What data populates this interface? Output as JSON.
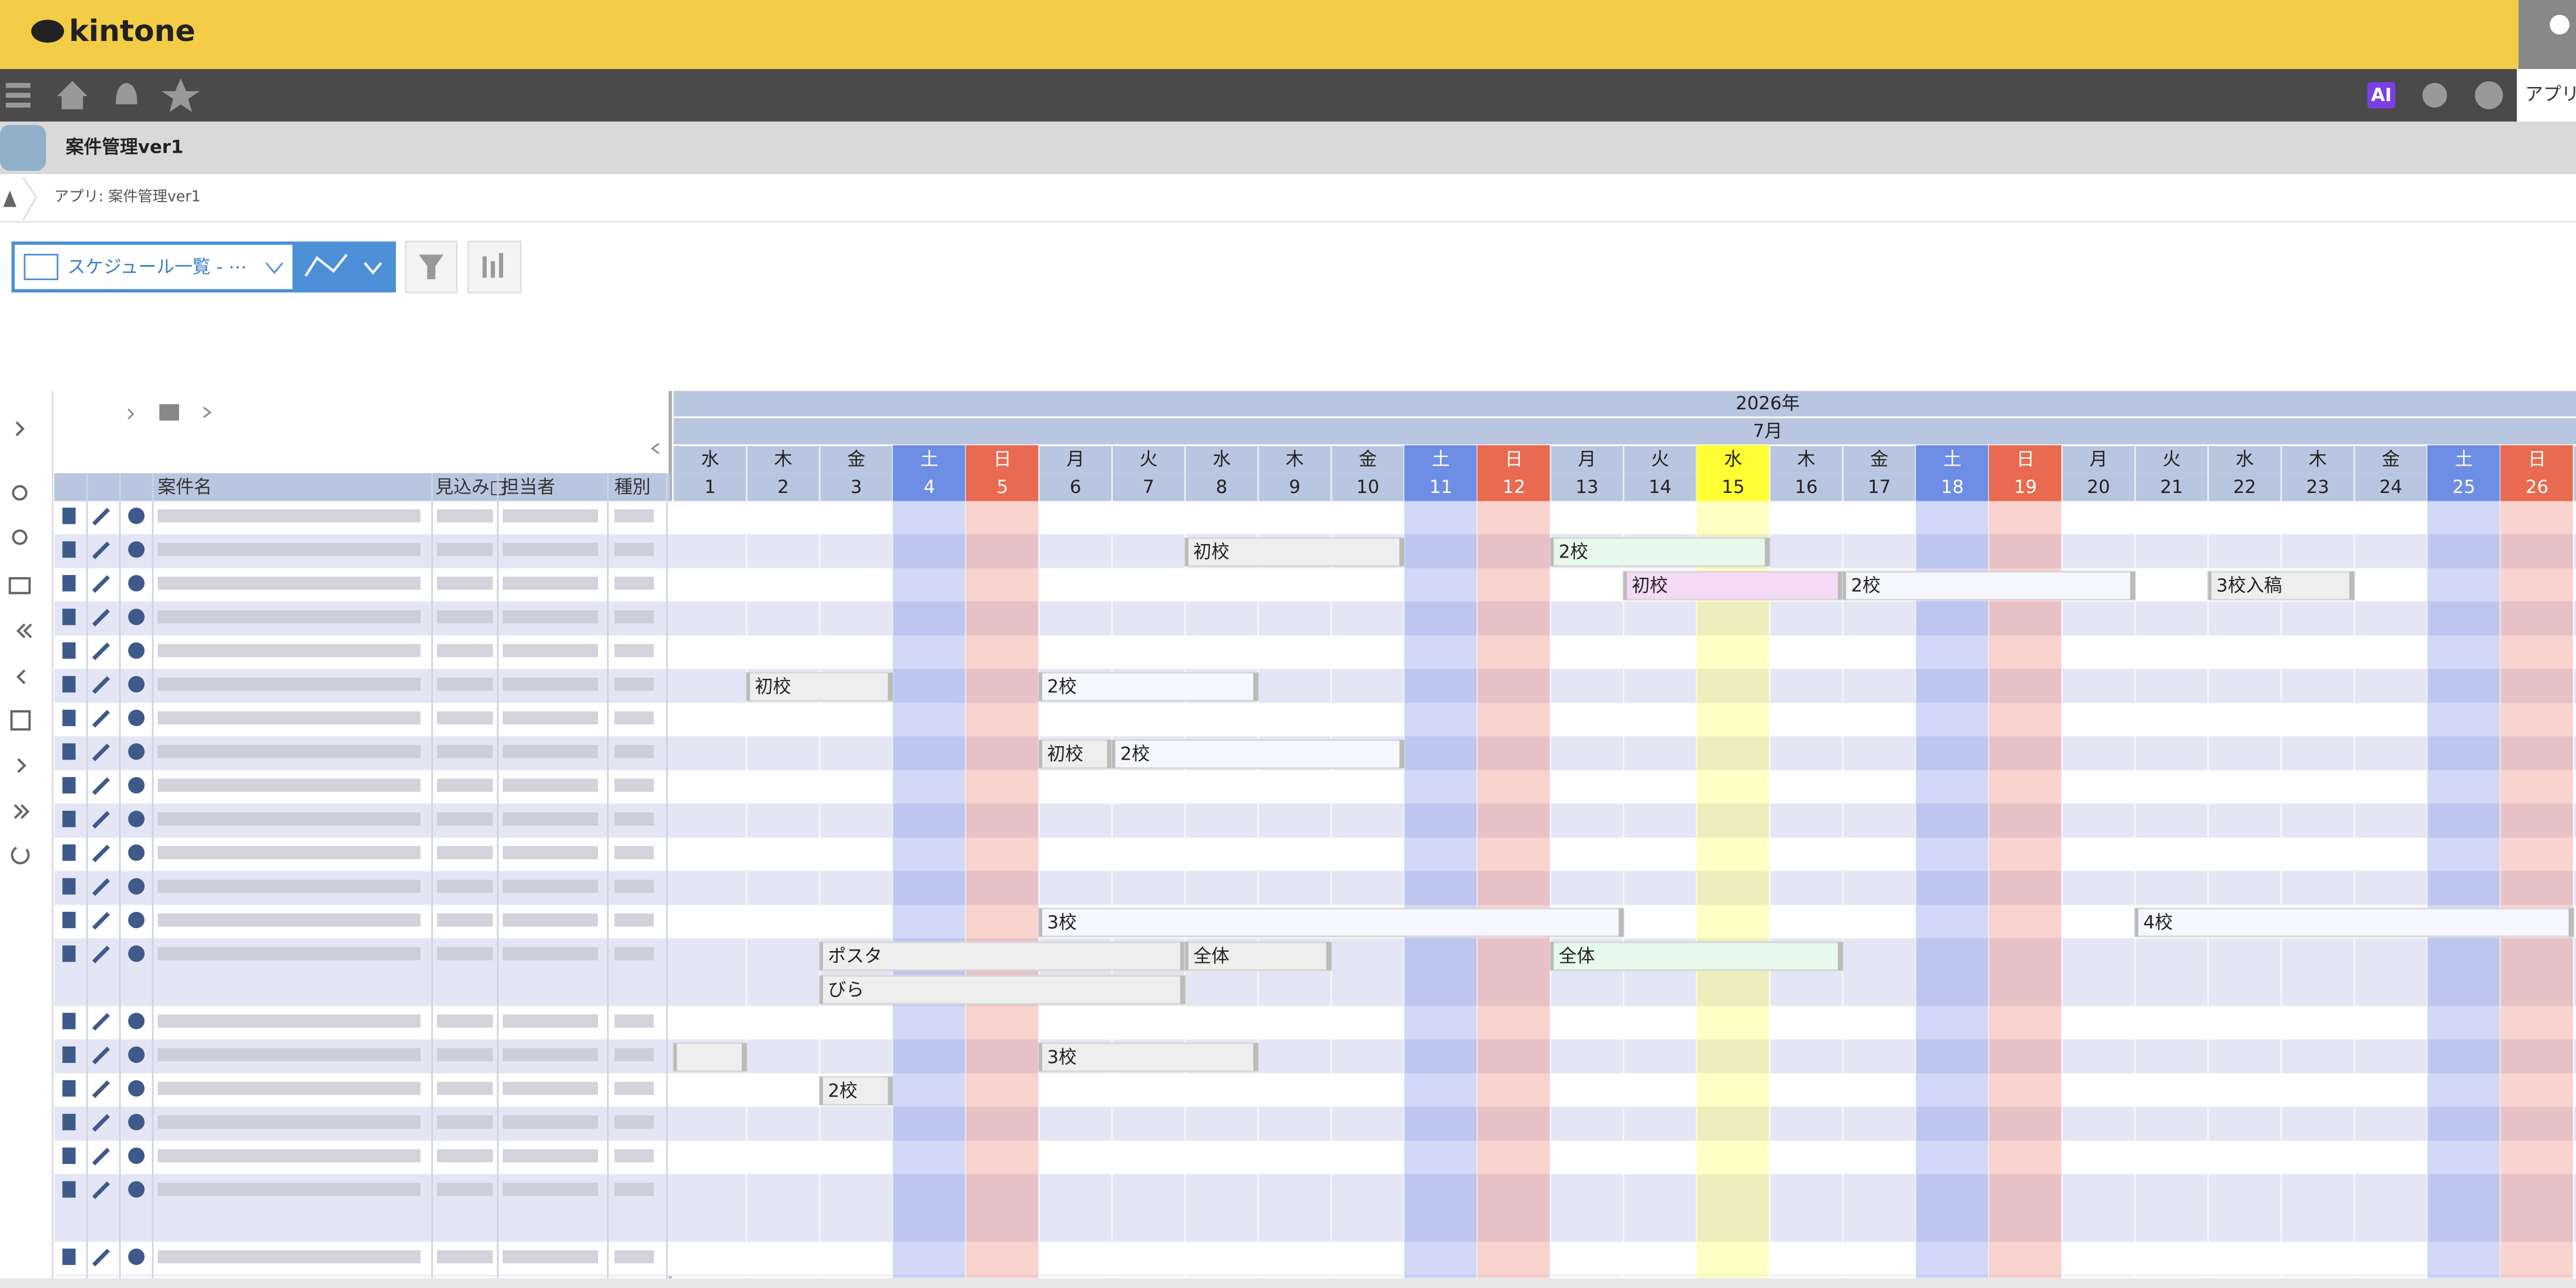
{
  "header": {
    "logo": "kintone",
    "ai": "AI",
    "apps": "アプリ"
  },
  "app": {
    "title": "案件管理ver1",
    "breadcrumb": "アプリ: 案件管理ver1",
    "view": "スケジュール一覧 - ⋯"
  },
  "table": {
    "columns": [
      "案件名",
      "見込み□",
      "担当者",
      "種別"
    ]
  },
  "gantt": {
    "year": "2026年",
    "month": "7月",
    "days": [
      {
        "weekday": "水",
        "day": 1
      },
      {
        "weekday": "木",
        "day": 2
      },
      {
        "weekday": "金",
        "day": 3
      },
      {
        "weekday": "土",
        "day": 4,
        "color": "#6e8ee6",
        "shade": "rgba(90,115,230,0.28)"
      },
      {
        "weekday": "日",
        "day": 5,
        "color": "#e86a50",
        "shade": "rgba(235,110,90,0.3)"
      },
      {
        "weekday": "月",
        "day": 6
      },
      {
        "weekday": "火",
        "day": 7
      },
      {
        "weekday": "水",
        "day": 8
      },
      {
        "weekday": "木",
        "day": 9
      },
      {
        "weekday": "金",
        "day": 10
      },
      {
        "weekday": "土",
        "day": 11,
        "color": "#6e8ee6",
        "shade": "rgba(90,115,230,0.28)"
      },
      {
        "weekday": "日",
        "day": 12,
        "color": "#e86a50",
        "shade": "rgba(235,110,90,0.3)"
      },
      {
        "weekday": "月",
        "day": 13
      },
      {
        "weekday": "火",
        "day": 14
      },
      {
        "weekday": "水",
        "day": 15,
        "color": "#ffff33",
        "shade": "rgba(255,255,90,0.35)"
      },
      {
        "weekday": "木",
        "day": 16
      },
      {
        "weekday": "金",
        "day": 17
      },
      {
        "weekday": "土",
        "day": 18,
        "color": "#6e8ee6",
        "shade": "rgba(90,115,230,0.28)"
      },
      {
        "weekday": "日",
        "day": 19,
        "color": "#e86a50",
        "shade": "rgba(235,110,90,0.3)"
      },
      {
        "weekday": "月",
        "day": 20
      },
      {
        "weekday": "火",
        "day": 21
      },
      {
        "weekday": "水",
        "day": 22
      },
      {
        "weekday": "木",
        "day": 23
      },
      {
        "weekday": "金",
        "day": 24
      },
      {
        "weekday": "土",
        "day": 25,
        "color": "#6e8ee6",
        "shade": "rgba(90,115,230,0.28)"
      },
      {
        "weekday": "日",
        "day": 26,
        "color": "#e86a50",
        "shade": "rgba(235,110,90,0.3)"
      }
    ],
    "rows": [
      [],
      [
        {
          "label": "初校",
          "start": 8,
          "end": 10,
          "color": "#eeeeee"
        },
        {
          "label": "2校",
          "start": 13,
          "end": 15,
          "color": "#e6f9ea"
        }
      ],
      [
        {
          "label": "初校",
          "start": 14,
          "end": 16,
          "color": "#f5d9f5"
        },
        {
          "label": "2校",
          "start": 17,
          "end": 20,
          "color": "#f5f7fc"
        },
        {
          "label": "3校入稿",
          "start": 22,
          "end": 23,
          "color": "#eeeeee"
        }
      ],
      [],
      [],
      [
        {
          "label": "初校",
          "start": 2,
          "end": 3,
          "color": "#eeeeee"
        },
        {
          "label": "2校",
          "start": 6,
          "end": 8,
          "color": "#f5f7fc"
        }
      ],
      [],
      [
        {
          "label": "初校",
          "start": 6,
          "end": 6,
          "color": "#eeeeee"
        },
        {
          "label": "2校",
          "start": 7,
          "end": 10,
          "color": "#f5f7fc"
        }
      ],
      [],
      [],
      [],
      [],
      [
        {
          "label": "3校",
          "start": 6,
          "end": 13,
          "color": "#f5f7fc"
        },
        {
          "label": "4校",
          "start": 21,
          "end": 26,
          "color": "#f5f7fc"
        }
      ],
      [
        {
          "label": "ポスタ",
          "start": 3,
          "end": 7,
          "color": "#eeeeee"
        },
        {
          "label": "全体",
          "start": 8,
          "end": 9,
          "color": "#eeeeee"
        },
        {
          "label": "全体",
          "start": 13,
          "end": 16,
          "color": "#e6f9ea"
        },
        {
          "label": "びら",
          "start": 3,
          "end": 7,
          "color": "#eeeeee",
          "lane": 1
        }
      ],
      [],
      [
        {
          "start": 1,
          "end": 1,
          "color": "#eeeeee"
        },
        {
          "label": "3校",
          "start": 6,
          "end": 8,
          "color": "#eeeeee"
        }
      ],
      [
        {
          "label": "2校",
          "start": 3,
          "end": 3,
          "color": "#eeeeee"
        }
      ],
      [],
      [],
      [],
      []
    ]
  }
}
